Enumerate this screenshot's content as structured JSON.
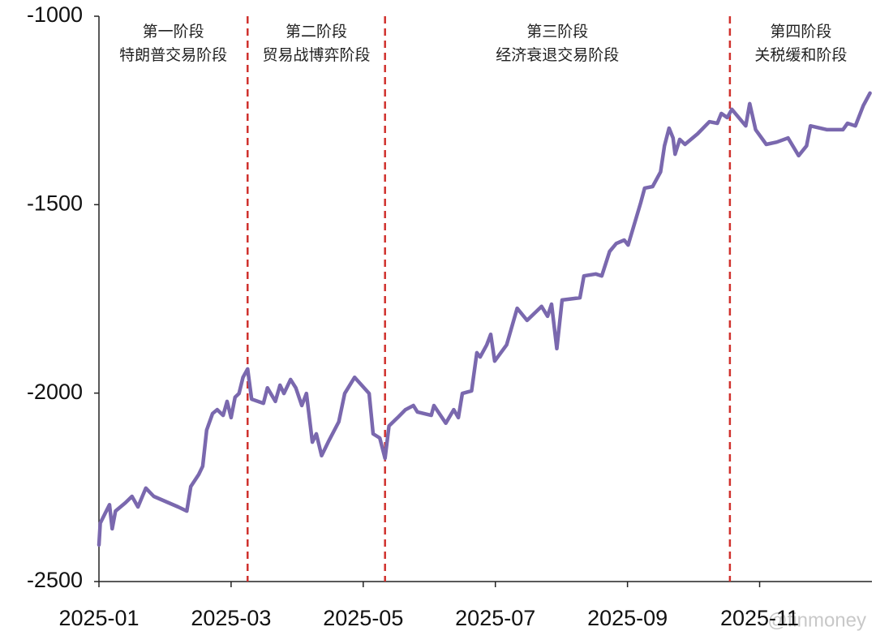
{
  "chart_data": {
    "type": "line",
    "x": [
      1.0,
      1.02,
      1.16,
      1.2,
      1.25,
      1.4,
      1.5,
      1.59,
      1.71,
      1.83,
      2.2,
      2.33,
      2.39,
      2.51,
      2.57,
      2.63,
      2.72,
      2.79,
      2.88,
      2.94,
      3.0,
      3.06,
      3.12,
      3.18,
      3.25,
      3.31,
      3.49,
      3.55,
      3.67,
      3.74,
      3.8,
      3.9,
      3.98,
      4.07,
      4.14,
      4.23,
      4.29,
      4.37,
      4.47,
      4.63,
      4.72,
      4.87,
      5.09,
      5.15,
      5.25,
      5.33,
      5.39,
      5.52,
      5.64,
      5.76,
      5.82,
      6.03,
      6.07,
      6.25,
      6.37,
      6.44,
      6.5,
      6.64,
      6.72,
      6.77,
      6.87,
      6.93,
      6.99,
      7.17,
      7.33,
      7.48,
      7.7,
      7.79,
      7.85,
      7.93,
      8.01,
      8.28,
      8.34,
      8.52,
      8.61,
      8.73,
      8.83,
      8.95,
      9.01,
      9.2,
      9.26,
      9.38,
      9.5,
      9.56,
      9.63,
      9.69,
      9.72,
      9.79,
      9.87,
      10.06,
      10.24,
      10.36,
      10.42,
      10.51,
      10.58,
      10.79,
      10.85,
      10.94,
      11.1,
      11.26,
      11.43,
      11.59,
      11.71,
      11.77,
      12.02,
      12.26,
      12.33,
      12.45,
      12.57,
      12.67
    ],
    "series": [
      {
        "color": "#7a68ae",
        "values": [
          -2403,
          -2345,
          -2296,
          -2360,
          -2313,
          -2291,
          -2274,
          -2302,
          -2252,
          -2274,
          -2302,
          -2313,
          -2248,
          -2216,
          -2194,
          -2098,
          -2054,
          -2044,
          -2059,
          -2022,
          -2065,
          -2011,
          -2001,
          -1958,
          -1936,
          -2016,
          -2027,
          -1986,
          -2022,
          -1979,
          -2001,
          -1964,
          -1986,
          -2033,
          -2001,
          -2130,
          -2108,
          -2166,
          -2130,
          -2076,
          -2001,
          -1958,
          -2001,
          -2108,
          -2119,
          -2173,
          -2087,
          -2065,
          -2044,
          -2033,
          -2050,
          -2059,
          -2033,
          -2080,
          -2044,
          -2065,
          -2001,
          -1994,
          -1893,
          -1904,
          -1872,
          -1844,
          -1915,
          -1872,
          -1775,
          -1807,
          -1770,
          -1796,
          -1764,
          -1882,
          -1753,
          -1747,
          -1689,
          -1684,
          -1689,
          -1624,
          -1603,
          -1594,
          -1607,
          -1495,
          -1456,
          -1452,
          -1413,
          -1344,
          -1297,
          -1323,
          -1366,
          -1327,
          -1340,
          -1312,
          -1280,
          -1284,
          -1258,
          -1269,
          -1247,
          -1291,
          -1232,
          -1301,
          -1340,
          -1334,
          -1323,
          -1370,
          -1344,
          -1291,
          -1301,
          -1301,
          -1284,
          -1291,
          -1237,
          -1204
        ]
      }
    ],
    "xlim": [
      1,
      12.7
    ],
    "xticks": [
      {
        "value": 1,
        "label": "2025-01"
      },
      {
        "value": 3,
        "label": "2025-03"
      },
      {
        "value": 5,
        "label": "2025-05"
      },
      {
        "value": 7,
        "label": "2025-07"
      },
      {
        "value": 9,
        "label": "2025-09"
      },
      {
        "value": 11,
        "label": "2025-11"
      }
    ],
    "ylim": [
      -2500,
      -1000
    ],
    "yticks": [
      -2500,
      -2000,
      -1500,
      -1000
    ],
    "dividers": [
      3.25,
      5.33,
      10.55
    ],
    "divider_color": "#d0312d",
    "phases": [
      {
        "title": "第一阶段",
        "subtitle": "特朗普交易阶段"
      },
      {
        "title": "第二阶段",
        "subtitle": "贸易战博弈阶段"
      },
      {
        "title": "第三阶段",
        "subtitle": "经济衰退交易阶段"
      },
      {
        "title": "第四阶段",
        "subtitle": "关税缓和阶段"
      }
    ],
    "watermark": "@finmoney"
  }
}
